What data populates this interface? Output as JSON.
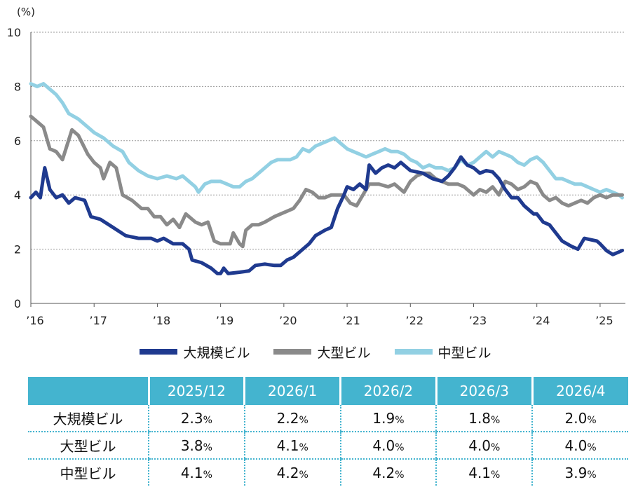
{
  "chart_data": {
    "type": "line",
    "unit_label": "(%)",
    "ylim": [
      0,
      10
    ],
    "y_ticks": [
      0,
      2,
      4,
      6,
      8,
      10
    ],
    "x_range": [
      2016.0,
      2025.4
    ],
    "x_ticks": [
      {
        "value": 2016,
        "label": "’16"
      },
      {
        "value": 2017,
        "label": "’17"
      },
      {
        "value": 2018,
        "label": "’18"
      },
      {
        "value": 2019,
        "label": "’19"
      },
      {
        "value": 2020,
        "label": "’20"
      },
      {
        "value": 2021,
        "label": "’21"
      },
      {
        "value": 2022,
        "label": "’22"
      },
      {
        "value": 2023,
        "label": "’23"
      },
      {
        "value": 2024,
        "label": "’24"
      },
      {
        "value": 2025,
        "label": "’25"
      }
    ],
    "grid": "horizontal-dotted",
    "legend_position": "bottom",
    "series": [
      {
        "name": "大規模ビル",
        "color": "#1f3a8f",
        "points": [
          [
            2016.0,
            3.9
          ],
          [
            2016.08,
            4.1
          ],
          [
            2016.15,
            3.9
          ],
          [
            2016.22,
            5.0
          ],
          [
            2016.3,
            4.2
          ],
          [
            2016.4,
            3.9
          ],
          [
            2016.5,
            4.0
          ],
          [
            2016.6,
            3.7
          ],
          [
            2016.7,
            3.9
          ],
          [
            2016.85,
            3.8
          ],
          [
            2016.95,
            3.2
          ],
          [
            2017.1,
            3.1
          ],
          [
            2017.3,
            2.8
          ],
          [
            2017.5,
            2.5
          ],
          [
            2017.7,
            2.4
          ],
          [
            2017.9,
            2.4
          ],
          [
            2018.0,
            2.3
          ],
          [
            2018.1,
            2.4
          ],
          [
            2018.25,
            2.2
          ],
          [
            2018.4,
            2.2
          ],
          [
            2018.5,
            2.0
          ],
          [
            2018.55,
            1.6
          ],
          [
            2018.7,
            1.5
          ],
          [
            2018.85,
            1.3
          ],
          [
            2018.95,
            1.1
          ],
          [
            2019.0,
            1.1
          ],
          [
            2019.05,
            1.3
          ],
          [
            2019.12,
            1.1
          ],
          [
            2019.3,
            1.15
          ],
          [
            2019.45,
            1.2
          ],
          [
            2019.55,
            1.4
          ],
          [
            2019.7,
            1.45
          ],
          [
            2019.85,
            1.4
          ],
          [
            2019.95,
            1.4
          ],
          [
            2020.05,
            1.6
          ],
          [
            2020.15,
            1.7
          ],
          [
            2020.25,
            1.9
          ],
          [
            2020.4,
            2.2
          ],
          [
            2020.5,
            2.5
          ],
          [
            2020.65,
            2.7
          ],
          [
            2020.75,
            2.8
          ],
          [
            2020.85,
            3.5
          ],
          [
            2020.95,
            4.0
          ],
          [
            2021.0,
            4.3
          ],
          [
            2021.1,
            4.2
          ],
          [
            2021.2,
            4.4
          ],
          [
            2021.3,
            4.2
          ],
          [
            2021.35,
            5.1
          ],
          [
            2021.45,
            4.8
          ],
          [
            2021.55,
            5.0
          ],
          [
            2021.65,
            5.1
          ],
          [
            2021.75,
            5.0
          ],
          [
            2021.85,
            5.2
          ],
          [
            2022.0,
            4.9
          ],
          [
            2022.2,
            4.8
          ],
          [
            2022.35,
            4.6
          ],
          [
            2022.5,
            4.5
          ],
          [
            2022.6,
            4.7
          ],
          [
            2022.7,
            5.0
          ],
          [
            2022.8,
            5.4
          ],
          [
            2022.9,
            5.1
          ],
          [
            2023.0,
            5.0
          ],
          [
            2023.1,
            4.8
          ],
          [
            2023.2,
            4.9
          ],
          [
            2023.3,
            4.85
          ],
          [
            2023.4,
            4.6
          ],
          [
            2023.5,
            4.2
          ],
          [
            2023.6,
            3.9
          ],
          [
            2023.7,
            3.9
          ],
          [
            2023.8,
            3.6
          ],
          [
            2023.95,
            3.3
          ],
          [
            2024.0,
            3.3
          ],
          [
            2024.1,
            3.0
          ],
          [
            2024.2,
            2.9
          ],
          [
            2024.3,
            2.6
          ],
          [
            2024.4,
            2.3
          ],
          [
            2024.55,
            2.1
          ],
          [
            2024.65,
            2.0
          ],
          [
            2024.75,
            2.4
          ],
          [
            2024.85,
            2.35
          ],
          [
            2024.95,
            2.3
          ],
          [
            2025.0,
            2.2
          ],
          [
            2025.1,
            1.95
          ],
          [
            2025.2,
            1.8
          ],
          [
            2025.3,
            1.9
          ],
          [
            2025.35,
            1.95
          ]
        ]
      },
      {
        "name": "大型ビル",
        "color": "#8a8a8a",
        "points": [
          [
            2016.0,
            6.9
          ],
          [
            2016.1,
            6.7
          ],
          [
            2016.2,
            6.5
          ],
          [
            2016.3,
            5.7
          ],
          [
            2016.4,
            5.6
          ],
          [
            2016.5,
            5.3
          ],
          [
            2016.65,
            6.4
          ],
          [
            2016.75,
            6.2
          ],
          [
            2016.9,
            5.5
          ],
          [
            2017.0,
            5.2
          ],
          [
            2017.1,
            5.0
          ],
          [
            2017.15,
            4.6
          ],
          [
            2017.25,
            5.2
          ],
          [
            2017.35,
            5.0
          ],
          [
            2017.45,
            4.0
          ],
          [
            2017.6,
            3.8
          ],
          [
            2017.75,
            3.5
          ],
          [
            2017.85,
            3.5
          ],
          [
            2017.95,
            3.2
          ],
          [
            2018.05,
            3.2
          ],
          [
            2018.15,
            2.9
          ],
          [
            2018.25,
            3.1
          ],
          [
            2018.35,
            2.8
          ],
          [
            2018.45,
            3.3
          ],
          [
            2018.6,
            3.0
          ],
          [
            2018.7,
            2.9
          ],
          [
            2018.8,
            3.0
          ],
          [
            2018.9,
            2.3
          ],
          [
            2019.0,
            2.2
          ],
          [
            2019.05,
            2.2
          ],
          [
            2019.15,
            2.2
          ],
          [
            2019.2,
            2.6
          ],
          [
            2019.3,
            2.2
          ],
          [
            2019.35,
            2.1
          ],
          [
            2019.4,
            2.7
          ],
          [
            2019.5,
            2.9
          ],
          [
            2019.6,
            2.9
          ],
          [
            2019.7,
            3.0
          ],
          [
            2019.85,
            3.2
          ],
          [
            2019.95,
            3.3
          ],
          [
            2020.05,
            3.4
          ],
          [
            2020.15,
            3.5
          ],
          [
            2020.25,
            3.8
          ],
          [
            2020.35,
            4.2
          ],
          [
            2020.45,
            4.1
          ],
          [
            2020.55,
            3.9
          ],
          [
            2020.65,
            3.9
          ],
          [
            2020.75,
            4.0
          ],
          [
            2020.85,
            4.0
          ],
          [
            2020.95,
            4.0
          ],
          [
            2021.05,
            3.7
          ],
          [
            2021.15,
            3.6
          ],
          [
            2021.25,
            4.0
          ],
          [
            2021.35,
            4.4
          ],
          [
            2021.5,
            4.4
          ],
          [
            2021.65,
            4.3
          ],
          [
            2021.75,
            4.4
          ],
          [
            2021.9,
            4.1
          ],
          [
            2022.0,
            4.5
          ],
          [
            2022.1,
            4.7
          ],
          [
            2022.2,
            4.8
          ],
          [
            2022.3,
            4.8
          ],
          [
            2022.4,
            4.6
          ],
          [
            2022.5,
            4.5
          ],
          [
            2022.6,
            4.4
          ],
          [
            2022.75,
            4.4
          ],
          [
            2022.85,
            4.3
          ],
          [
            2023.0,
            4.0
          ],
          [
            2023.1,
            4.2
          ],
          [
            2023.2,
            4.1
          ],
          [
            2023.3,
            4.3
          ],
          [
            2023.4,
            4.0
          ],
          [
            2023.5,
            4.5
          ],
          [
            2023.6,
            4.4
          ],
          [
            2023.7,
            4.2
          ],
          [
            2023.8,
            4.3
          ],
          [
            2023.9,
            4.5
          ],
          [
            2024.0,
            4.4
          ],
          [
            2024.1,
            4.0
          ],
          [
            2024.2,
            3.8
          ],
          [
            2024.3,
            3.9
          ],
          [
            2024.4,
            3.7
          ],
          [
            2024.5,
            3.6
          ],
          [
            2024.6,
            3.7
          ],
          [
            2024.7,
            3.8
          ],
          [
            2024.8,
            3.7
          ],
          [
            2024.9,
            3.9
          ],
          [
            2025.0,
            4.0
          ],
          [
            2025.1,
            3.9
          ],
          [
            2025.2,
            4.0
          ],
          [
            2025.3,
            4.0
          ],
          [
            2025.35,
            4.0
          ]
        ]
      },
      {
        "name": "中型ビル",
        "color": "#92d0e3",
        "points": [
          [
            2016.0,
            8.1
          ],
          [
            2016.1,
            8.0
          ],
          [
            2016.2,
            8.1
          ],
          [
            2016.3,
            7.9
          ],
          [
            2016.4,
            7.7
          ],
          [
            2016.5,
            7.4
          ],
          [
            2016.6,
            7.0
          ],
          [
            2016.75,
            6.8
          ],
          [
            2016.9,
            6.5
          ],
          [
            2017.0,
            6.3
          ],
          [
            2017.15,
            6.1
          ],
          [
            2017.3,
            5.8
          ],
          [
            2017.45,
            5.6
          ],
          [
            2017.55,
            5.2
          ],
          [
            2017.7,
            4.9
          ],
          [
            2017.85,
            4.7
          ],
          [
            2018.0,
            4.6
          ],
          [
            2018.15,
            4.7
          ],
          [
            2018.3,
            4.6
          ],
          [
            2018.4,
            4.7
          ],
          [
            2018.5,
            4.5
          ],
          [
            2018.6,
            4.3
          ],
          [
            2018.65,
            4.1
          ],
          [
            2018.75,
            4.4
          ],
          [
            2018.85,
            4.5
          ],
          [
            2019.0,
            4.5
          ],
          [
            2019.1,
            4.4
          ],
          [
            2019.2,
            4.3
          ],
          [
            2019.3,
            4.3
          ],
          [
            2019.4,
            4.5
          ],
          [
            2019.5,
            4.6
          ],
          [
            2019.6,
            4.8
          ],
          [
            2019.7,
            5.0
          ],
          [
            2019.8,
            5.2
          ],
          [
            2019.9,
            5.3
          ],
          [
            2020.0,
            5.3
          ],
          [
            2020.1,
            5.3
          ],
          [
            2020.2,
            5.4
          ],
          [
            2020.3,
            5.7
          ],
          [
            2020.4,
            5.6
          ],
          [
            2020.5,
            5.8
          ],
          [
            2020.6,
            5.9
          ],
          [
            2020.7,
            6.0
          ],
          [
            2020.8,
            6.1
          ],
          [
            2020.9,
            5.9
          ],
          [
            2021.0,
            5.7
          ],
          [
            2021.1,
            5.6
          ],
          [
            2021.2,
            5.5
          ],
          [
            2021.3,
            5.4
          ],
          [
            2021.4,
            5.5
          ],
          [
            2021.5,
            5.6
          ],
          [
            2021.6,
            5.7
          ],
          [
            2021.7,
            5.6
          ],
          [
            2021.8,
            5.6
          ],
          [
            2021.9,
            5.5
          ],
          [
            2022.0,
            5.3
          ],
          [
            2022.1,
            5.2
          ],
          [
            2022.2,
            5.0
          ],
          [
            2022.3,
            5.1
          ],
          [
            2022.4,
            5.0
          ],
          [
            2022.5,
            5.0
          ],
          [
            2022.6,
            4.9
          ],
          [
            2022.7,
            5.0
          ],
          [
            2022.8,
            5.3
          ],
          [
            2022.9,
            5.1
          ],
          [
            2023.0,
            5.2
          ],
          [
            2023.1,
            5.4
          ],
          [
            2023.2,
            5.6
          ],
          [
            2023.3,
            5.4
          ],
          [
            2023.4,
            5.6
          ],
          [
            2023.5,
            5.5
          ],
          [
            2023.6,
            5.4
          ],
          [
            2023.7,
            5.2
          ],
          [
            2023.8,
            5.1
          ],
          [
            2023.9,
            5.3
          ],
          [
            2024.0,
            5.4
          ],
          [
            2024.1,
            5.2
          ],
          [
            2024.2,
            4.9
          ],
          [
            2024.3,
            4.6
          ],
          [
            2024.4,
            4.6
          ],
          [
            2024.5,
            4.5
          ],
          [
            2024.6,
            4.4
          ],
          [
            2024.7,
            4.4
          ],
          [
            2024.8,
            4.3
          ],
          [
            2024.9,
            4.2
          ],
          [
            2025.0,
            4.1
          ],
          [
            2025.1,
            4.2
          ],
          [
            2025.2,
            4.1
          ],
          [
            2025.3,
            4.0
          ],
          [
            2025.35,
            3.9
          ]
        ]
      }
    ]
  },
  "legend": [
    {
      "name": "大規模ビル",
      "color": "#1f3a8f"
    },
    {
      "name": "大型ビル",
      "color": "#8a8a8a"
    },
    {
      "name": "中型ビル",
      "color": "#92d0e3"
    }
  ],
  "forecast_table": {
    "header_color": "#44b4cf",
    "columns": [
      "2025/12",
      "2026/1",
      "2026/2",
      "2026/3",
      "2026/4"
    ],
    "rows": [
      {
        "label": "大規模ビル",
        "values": [
          "2.3",
          "2.2",
          "1.9",
          "1.8",
          "2.0"
        ]
      },
      {
        "label": "大型ビル",
        "values": [
          "3.8",
          "4.1",
          "4.0",
          "4.0",
          "4.0"
        ]
      },
      {
        "label": "中型ビル",
        "values": [
          "4.1",
          "4.2",
          "4.2",
          "4.1",
          "3.9"
        ]
      }
    ],
    "unit_suffix": "%"
  }
}
